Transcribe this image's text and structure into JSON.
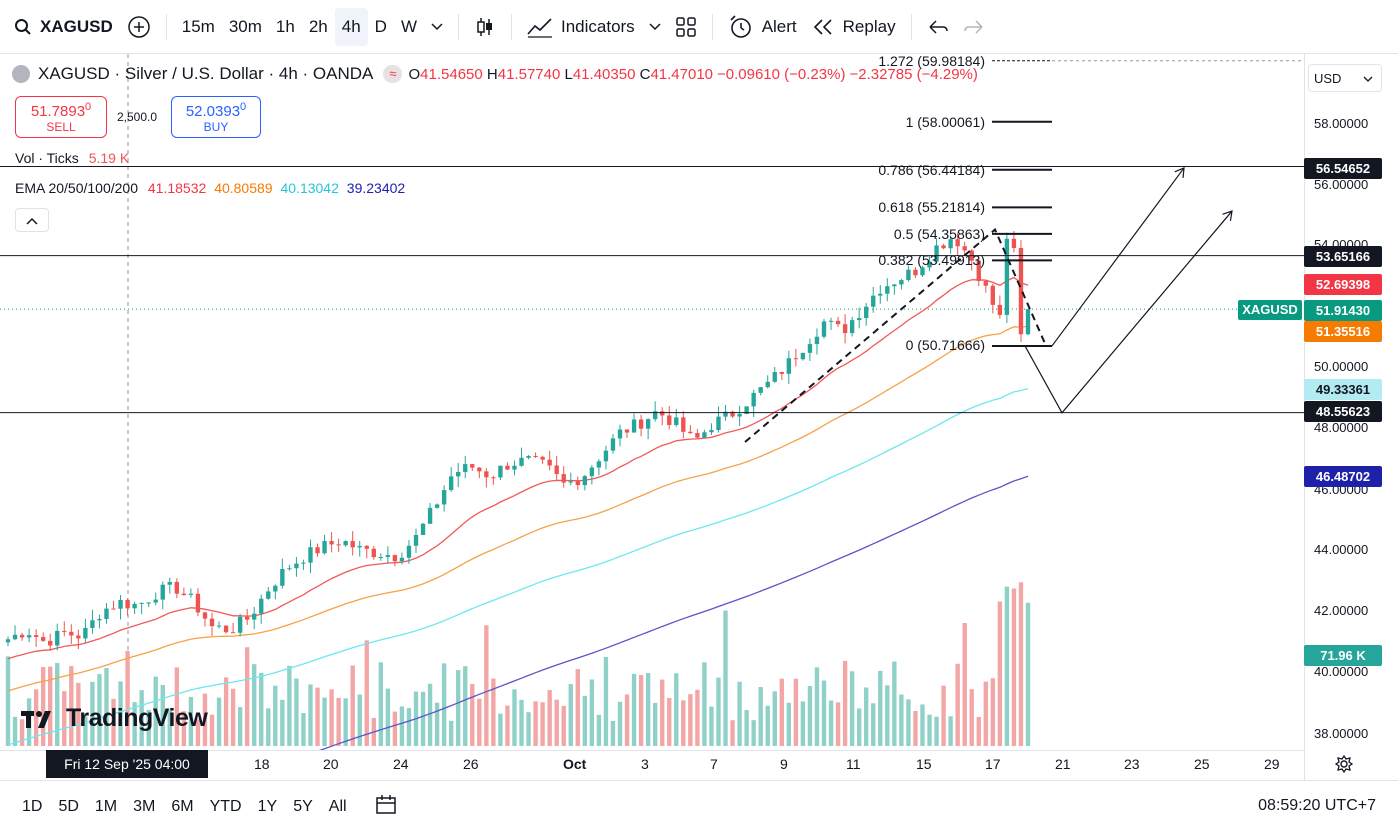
{
  "toolbar": {
    "symbol": "XAGUSD",
    "intervals": [
      "15m",
      "30m",
      "1h",
      "2h",
      "4h",
      "D",
      "W"
    ],
    "active_interval": "4h",
    "indicators_label": "Indicators",
    "alert_label": "Alert",
    "replay_label": "Replay"
  },
  "legend": {
    "title": "XAGUSD · Silver / U.S. Dollar · 4h · OANDA",
    "open_label": "O",
    "open": "41.54650",
    "high_label": "H",
    "high": "41.57740",
    "low_label": "L",
    "low": "41.40350",
    "close_label": "C",
    "close": "41.47010",
    "change": "−0.09610 (−0.23%)",
    "change2": "−2.32785 (−4.29%)"
  },
  "trade": {
    "sell_price": "51.7893",
    "sell_sup": "0",
    "sell_label": "SELL",
    "quantity": "2,500.0",
    "buy_price": "52.0393",
    "buy_sup": "0",
    "buy_label": "BUY"
  },
  "volume_ind": {
    "label": "Vol · Ticks",
    "value": "5.19 K"
  },
  "ema_ind": {
    "label": "EMA 20/50/100/200",
    "v20": "41.18532",
    "v50": "40.80589",
    "v100": "40.13042",
    "v200": "39.23402"
  },
  "colors": {
    "up": "#26a69a",
    "down": "#ef5350",
    "ema20": "#f05a5a",
    "ema50": "#f7a14a",
    "ema100": "#6ee7f0",
    "ema200": "#5b55c9",
    "vol_up": "#8fd1c8",
    "vol_down": "#f3a6a6"
  },
  "price_axis": {
    "currency": "USD",
    "ticks": [
      "58.00000",
      "56.00000",
      "54.00000",
      "50.00000",
      "48.00000",
      "46.00000",
      "44.00000",
      "42.00000",
      "40.00000",
      "38.00000"
    ],
    "symbol_tag": "XAGUSD",
    "tags": [
      {
        "text": "56.54652",
        "bg": "#131722",
        "fg": "#ffffff"
      },
      {
        "text": "53.65166",
        "bg": "#131722",
        "fg": "#ffffff"
      },
      {
        "text": "52.69398",
        "bg": "#f23645",
        "fg": "#ffffff"
      },
      {
        "text": "51.91430",
        "bg": "#089981",
        "fg": "#ffffff"
      },
      {
        "text": "51.35516",
        "bg": "#f57c00",
        "fg": "#ffffff"
      },
      {
        "text": "49.33361",
        "bg": "#b2ebf2",
        "fg": "#131722"
      },
      {
        "text": "48.55623",
        "bg": "#131722",
        "fg": "#ffffff"
      },
      {
        "text": "46.48702",
        "bg": "#1e22aa",
        "fg": "#ffffff"
      },
      {
        "text": "71.96 K",
        "bg": "#26a69a",
        "fg": "#ffffff"
      }
    ]
  },
  "time_axis": {
    "labels": [
      "18",
      "20",
      "24",
      "26",
      "Oct",
      "3",
      "7",
      "9",
      "11",
      "15",
      "17",
      "21",
      "23",
      "25",
      "29"
    ],
    "crosshair_label": "Fri 12 Sep '25   04:00"
  },
  "fib": {
    "levels": [
      {
        "ratio": "1.272",
        "price": "59.98184",
        "label": "1.272 (59.98184)"
      },
      {
        "ratio": "1",
        "price": "58.00061",
        "label": "1 (58.00061)"
      },
      {
        "ratio": "0.786",
        "price": "56.44184",
        "label": "0.786 (56.44184)"
      },
      {
        "ratio": "0.618",
        "price": "55.21814",
        "label": "0.618 (55.21814)"
      },
      {
        "ratio": "0.5",
        "price": "54.35863",
        "label": "0.5 (54.35863)"
      },
      {
        "ratio": "0.382",
        "price": "53.49913",
        "label": "0.382 (53.49913)"
      },
      {
        "ratio": "0",
        "price": "50.71666",
        "label": "0 (50.71666)"
      }
    ]
  },
  "chart_data": {
    "type": "candlestick",
    "title": "XAGUSD · Silver / U.S. Dollar · 4h · OANDA",
    "ylim": [
      37.6,
      60.2
    ],
    "x_ticks": [
      "18",
      "20",
      "24",
      "26",
      "Oct",
      "3",
      "7",
      "9",
      "11",
      "15",
      "17",
      "21",
      "23",
      "25",
      "29"
    ],
    "horizontal_levels": [
      56.54652,
      53.65166,
      48.55623
    ],
    "fib_levels": [
      59.98184,
      58.00061,
      56.44184,
      55.21814,
      54.35863,
      53.49913,
      50.71666
    ],
    "last_price": 51.9143,
    "ema_latest": {
      "ema20": 52.69398,
      "ema50": 51.35516,
      "ema100": 49.33361,
      "ema200": 46.48702
    },
    "price_path": [
      41.2,
      41.5,
      41.1,
      41.4,
      41.3,
      42.1,
      42.4,
      42.3,
      42.7,
      42.9,
      42.4,
      41.6,
      41.5,
      41.9,
      42.8,
      43.5,
      43.9,
      44.2,
      44.4,
      44.1,
      44.0,
      43.9,
      44.5,
      45.5,
      46.6,
      46.8,
      46.5,
      46.9,
      47.0,
      46.8,
      46.2,
      46.5,
      47.2,
      47.9,
      48.2,
      48.6,
      48.2,
      47.6,
      48.2,
      48.5,
      49.0,
      49.5,
      50.1,
      50.8,
      51.5,
      51.2,
      51.9,
      52.6,
      52.9,
      53.2,
      53.9,
      54.3,
      53.5,
      52.2,
      51.0,
      51.9
    ],
    "volume_ticks_latest_k": 71.96
  },
  "bottombar": {
    "ranges": [
      "1D",
      "5D",
      "1M",
      "3M",
      "6M",
      "YTD",
      "1Y",
      "5Y",
      "All"
    ],
    "clock": "08:59:20 UTC+7"
  },
  "branding": {
    "logo_text": "TradingView"
  }
}
